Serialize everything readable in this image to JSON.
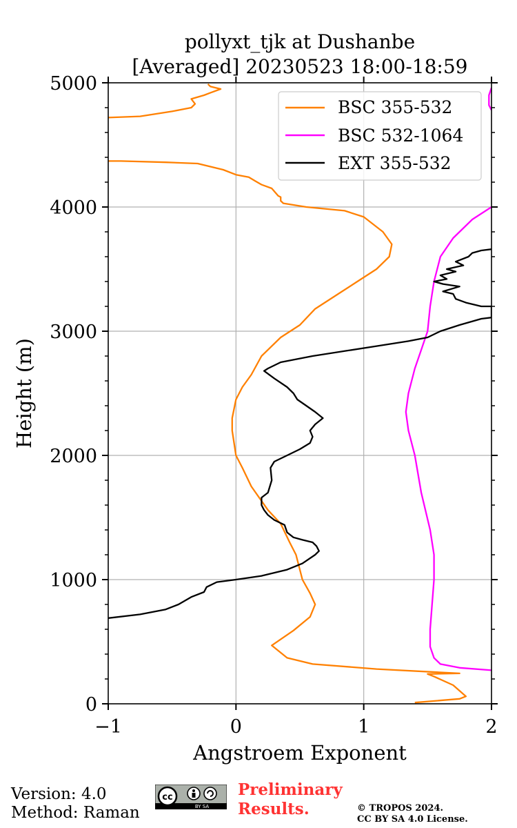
{
  "chart_data": {
    "type": "line",
    "title": "pollyxt_tjk at Dushanbe",
    "subtitle": "[Averaged] 20230523 18:00-18:59",
    "xlabel": "Angstroem Exponent",
    "ylabel": "Height (m)",
    "xlim": [
      -1,
      2
    ],
    "ylim": [
      0,
      5000
    ],
    "xticks": [
      -1,
      0,
      1,
      2
    ],
    "xtick_labels": [
      "−1",
      "0",
      "1",
      "2"
    ],
    "yticks": [
      0,
      1000,
      2000,
      3000,
      4000,
      5000
    ],
    "ytick_labels": [
      "0",
      "1000",
      "2000",
      "3000",
      "4000",
      "5000"
    ],
    "grid": true,
    "legend_position": "top-right",
    "series": [
      {
        "name": "BSC 355-532",
        "color": "#ff8000",
        "points": [
          [
            1.4,
            10
          ],
          [
            1.75,
            40
          ],
          [
            1.8,
            60
          ],
          [
            1.7,
            150
          ],
          [
            1.55,
            220
          ],
          [
            1.5,
            240
          ],
          [
            1.75,
            245
          ],
          [
            1.1,
            280
          ],
          [
            0.6,
            320
          ],
          [
            0.4,
            370
          ],
          [
            0.28,
            470
          ],
          [
            0.45,
            590
          ],
          [
            0.58,
            700
          ],
          [
            0.62,
            800
          ],
          [
            0.58,
            890
          ],
          [
            0.52,
            1000
          ],
          [
            0.47,
            1200
          ],
          [
            0.42,
            1300
          ],
          [
            0.35,
            1450
          ],
          [
            0.25,
            1560
          ],
          [
            0.12,
            1750
          ],
          [
            0.05,
            1900
          ],
          [
            0,
            2000
          ],
          [
            -0.03,
            2200
          ],
          [
            -0.03,
            2300
          ],
          [
            0,
            2450
          ],
          [
            0.05,
            2550
          ],
          [
            0.12,
            2650
          ],
          [
            0.2,
            2800
          ],
          [
            0.35,
            2950
          ],
          [
            0.5,
            3050
          ],
          [
            0.62,
            3180
          ],
          [
            0.8,
            3300
          ],
          [
            0.95,
            3400
          ],
          [
            1.1,
            3500
          ],
          [
            1.2,
            3600
          ],
          [
            1.22,
            3700
          ],
          [
            1.15,
            3800
          ],
          [
            1.0,
            3920
          ],
          [
            0.85,
            3970
          ],
          [
            0.55,
            4000
          ],
          [
            0.37,
            4030
          ],
          [
            0.35,
            4050
          ],
          [
            0.35,
            4080
          ],
          [
            0.33,
            4090
          ],
          [
            0.28,
            4150
          ],
          [
            0.2,
            4180
          ],
          [
            0.15,
            4210
          ],
          [
            0.1,
            4240
          ],
          [
            0,
            4260
          ],
          [
            -0.1,
            4300
          ],
          [
            -0.3,
            4350
          ],
          [
            -0.55,
            4360
          ],
          [
            -0.9,
            4370
          ],
          [
            -1.0,
            4370
          ]
        ],
        "segments_break_after": 4370,
        "points_upper": [
          [
            -1.0,
            4720
          ],
          [
            -0.75,
            4730
          ],
          [
            -0.5,
            4770
          ],
          [
            -0.35,
            4800
          ],
          [
            -0.32,
            4830
          ],
          [
            -0.35,
            4870
          ],
          [
            -0.25,
            4900
          ],
          [
            -0.2,
            4920
          ],
          [
            -0.12,
            4950
          ],
          [
            -0.2,
            4970
          ],
          [
            -0.22,
            4990
          ]
        ]
      },
      {
        "name": "BSC 532-1064",
        "color": "#ff00ff",
        "points": [
          [
            2.0,
            270
          ],
          [
            1.75,
            290
          ],
          [
            1.6,
            320
          ],
          [
            1.55,
            370
          ],
          [
            1.52,
            460
          ],
          [
            1.52,
            600
          ],
          [
            1.55,
            1000
          ],
          [
            1.55,
            1200
          ],
          [
            1.52,
            1400
          ],
          [
            1.45,
            1700
          ],
          [
            1.4,
            2000
          ],
          [
            1.35,
            2200
          ],
          [
            1.33,
            2350
          ],
          [
            1.35,
            2500
          ],
          [
            1.4,
            2700
          ],
          [
            1.45,
            2850
          ],
          [
            1.5,
            3000
          ],
          [
            1.52,
            3200
          ],
          [
            1.55,
            3400
          ],
          [
            1.6,
            3600
          ],
          [
            1.7,
            3750
          ],
          [
            1.85,
            3900
          ],
          [
            2.0,
            4000
          ]
        ],
        "points_upper": [
          [
            2.0,
            4780
          ],
          [
            1.98,
            4820
          ],
          [
            1.98,
            4900
          ],
          [
            2.0,
            4960
          ]
        ]
      },
      {
        "name": "EXT 355-532",
        "color": "#000000",
        "points": [
          [
            -1.0,
            690
          ],
          [
            -0.75,
            720
          ],
          [
            -0.55,
            760
          ],
          [
            -0.45,
            800
          ],
          [
            -0.35,
            860
          ],
          [
            -0.25,
            900
          ],
          [
            -0.23,
            940
          ],
          [
            -0.15,
            980
          ],
          [
            0.0,
            1000
          ],
          [
            0.2,
            1030
          ],
          [
            0.4,
            1080
          ],
          [
            0.52,
            1130
          ],
          [
            0.62,
            1200
          ],
          [
            0.65,
            1230
          ],
          [
            0.63,
            1270
          ],
          [
            0.6,
            1300
          ],
          [
            0.52,
            1320
          ],
          [
            0.45,
            1340
          ],
          [
            0.4,
            1380
          ],
          [
            0.38,
            1440
          ],
          [
            0.3,
            1480
          ],
          [
            0.25,
            1520
          ],
          [
            0.22,
            1560
          ],
          [
            0.2,
            1600
          ],
          [
            0.2,
            1660
          ],
          [
            0.25,
            1700
          ],
          [
            0.28,
            1800
          ],
          [
            0.27,
            1900
          ],
          [
            0.3,
            1950
          ],
          [
            0.4,
            2000
          ],
          [
            0.5,
            2050
          ],
          [
            0.58,
            2100
          ],
          [
            0.6,
            2150
          ],
          [
            0.58,
            2200
          ],
          [
            0.62,
            2250
          ],
          [
            0.68,
            2300
          ],
          [
            0.62,
            2350
          ],
          [
            0.55,
            2400
          ],
          [
            0.48,
            2450
          ],
          [
            0.45,
            2500
          ],
          [
            0.4,
            2550
          ],
          [
            0.3,
            2620
          ],
          [
            0.22,
            2680
          ],
          [
            0.25,
            2700
          ],
          [
            0.35,
            2750
          ],
          [
            0.6,
            2800
          ],
          [
            0.85,
            2840
          ],
          [
            1.1,
            2880
          ],
          [
            1.35,
            2920
          ],
          [
            1.5,
            2950
          ],
          [
            1.6,
            3000
          ],
          [
            1.75,
            3050
          ],
          [
            1.92,
            3100
          ],
          [
            2.0,
            3110
          ],
          [
            2.0,
            3200
          ],
          [
            1.92,
            3200
          ],
          [
            1.8,
            3230
          ],
          [
            1.72,
            3260
          ],
          [
            1.7,
            3300
          ],
          [
            1.62,
            3320
          ],
          [
            1.75,
            3360
          ],
          [
            1.62,
            3380
          ],
          [
            1.55,
            3400
          ],
          [
            1.65,
            3420
          ],
          [
            1.6,
            3450
          ],
          [
            1.72,
            3480
          ],
          [
            1.65,
            3500
          ],
          [
            1.78,
            3530
          ],
          [
            1.72,
            3560
          ],
          [
            1.82,
            3600
          ],
          [
            1.85,
            3630
          ],
          [
            1.92,
            3650
          ],
          [
            2.0,
            3660
          ]
        ]
      }
    ]
  },
  "footer": {
    "version": "Version: 4.0",
    "method": "Method: Raman",
    "preliminary_line1": "Preliminary",
    "preliminary_line2": "Results.",
    "copyright_line1": "© TROPOS 2024.",
    "copyright_line2": "CC BY SA 4.0 License.",
    "badge_text": "BY  SA"
  }
}
